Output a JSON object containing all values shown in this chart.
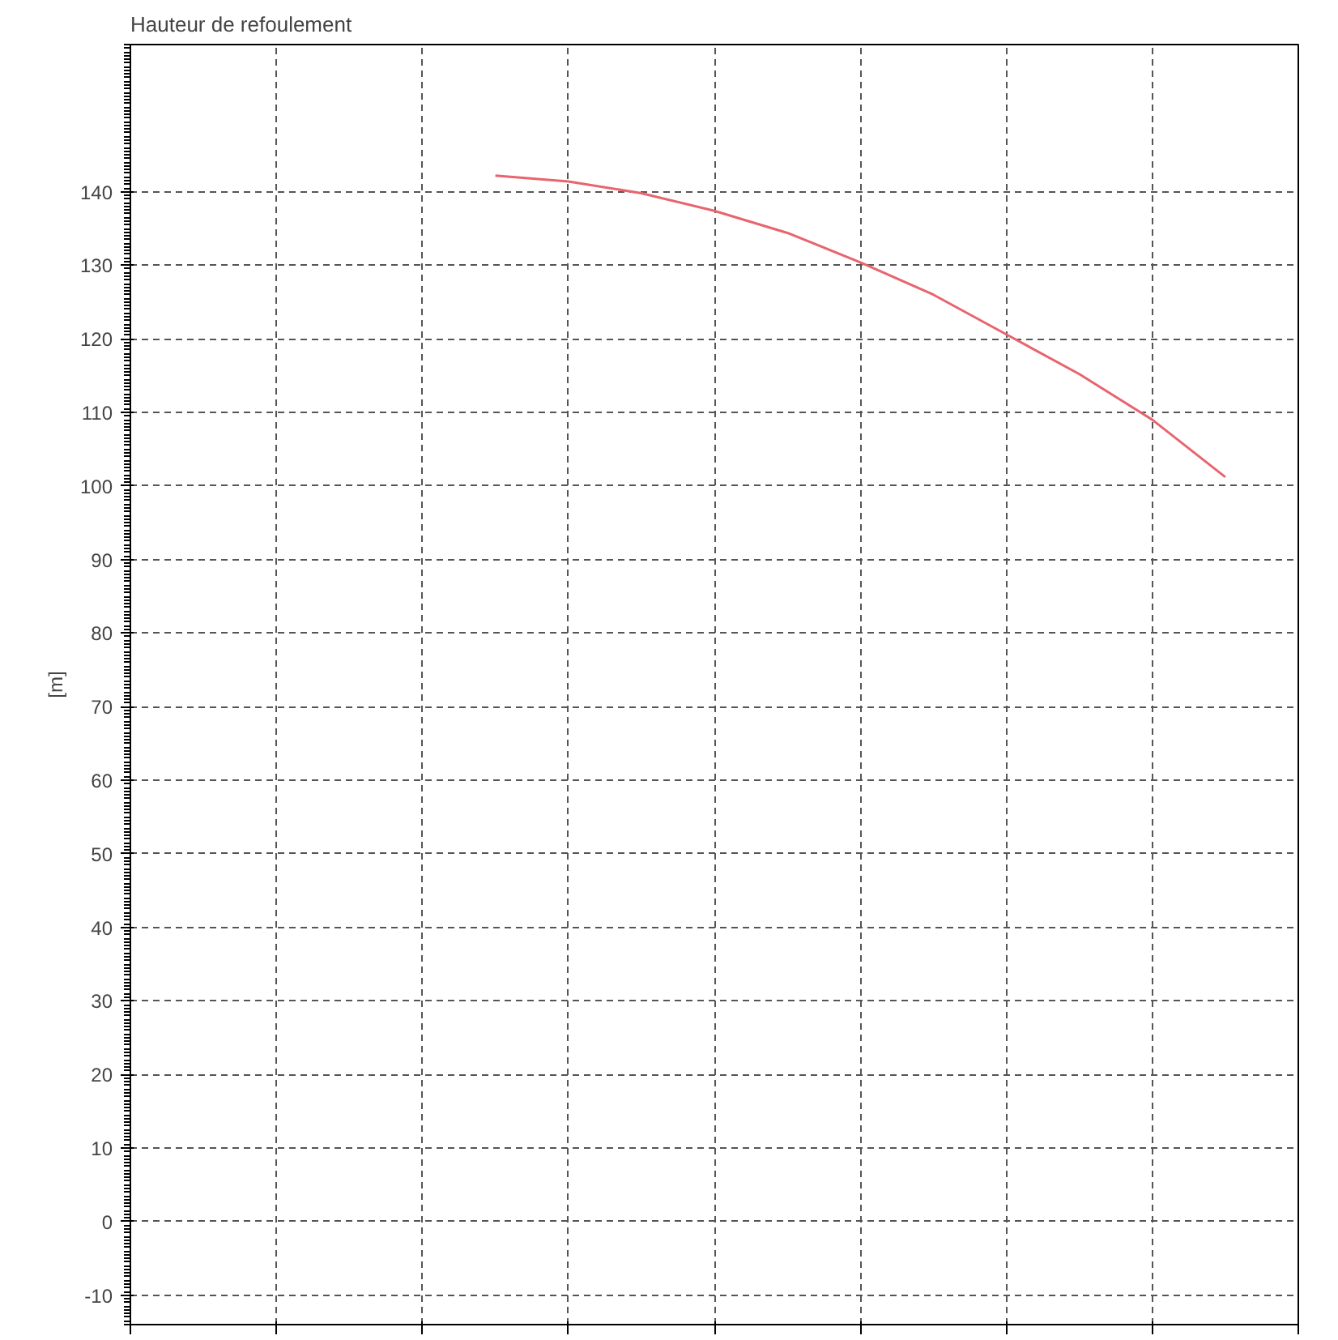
{
  "chart_data": {
    "type": "line",
    "title": "Hauteur de refoulement",
    "ylabel": "[m]",
    "categories": [
      null,
      null,
      null,
      null,
      null,
      null,
      null,
      null,
      null,
      null,
      null,
      null,
      null,
      null,
      null,
      null,
      null
    ],
    "ylim": [
      -14,
      160
    ],
    "yticks": [
      -10,
      0,
      10,
      20,
      30,
      40,
      50,
      60,
      70,
      80,
      90,
      100,
      110,
      120,
      130,
      140
    ],
    "tick_labels": "y",
    "grid": true,
    "line_style": "solid",
    "series": [
      {
        "color": "#e8646e",
        "values": [
          null,
          null,
          null,
          null,
          null,
          142.2,
          141.4,
          139.8,
          137.4,
          134.4,
          130.4,
          126.0,
          120.6,
          115.2,
          109.0,
          101.2,
          null
        ]
      }
    ]
  }
}
